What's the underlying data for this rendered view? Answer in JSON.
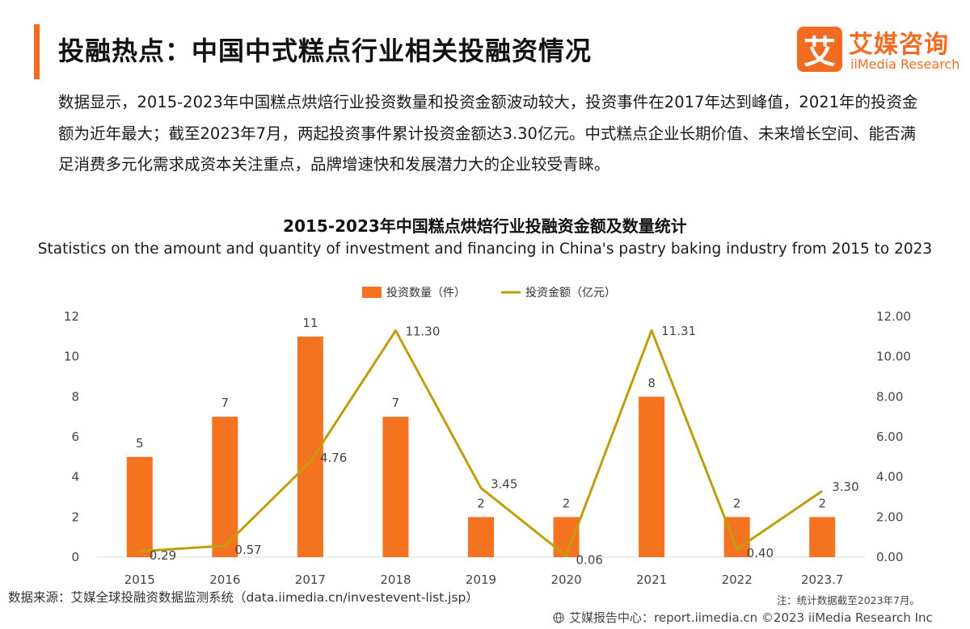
{
  "header": {
    "title": "投融热点：中国中式糕点行业相关投融资情况",
    "accent_color": "#f26b21"
  },
  "logo": {
    "mark": "艾",
    "name_cn": "艾媒咨询",
    "name_en": "iiMedia Research"
  },
  "summary": {
    "text": "数据显示，2015-2023年中国糕点烘焙行业投资数量和投资金额波动较大，投资事件在2017年达到峰值，2021年的投资金额为近年最大；截至2023年7月，两起投资事件累计投资金额达3.30亿元。中式糕点企业长期价值、未来增长空间、能否满足消费多元化需求成资本关注重点，品牌增速快和发展潜力大的企业较受青睐。"
  },
  "chart_data": {
    "type": "bar",
    "title": "2015-2023年中国糕点烘焙行业投融资金额及数量统计",
    "subtitle": "Statistics on the amount and quantity of investment and financing in China's pastry baking industry from 2015 to 2023",
    "categories": [
      "2015",
      "2016",
      "2017",
      "2018",
      "2019",
      "2020",
      "2021",
      "2022",
      "2023.7"
    ],
    "series": [
      {
        "name": "投资数量（件）",
        "type": "bar",
        "axis": "left",
        "color": "#f47321",
        "values": [
          5,
          7,
          11,
          7,
          2,
          2,
          8,
          2,
          2
        ],
        "labels": [
          "5",
          "7",
          "11",
          "7",
          "2",
          "2",
          "8",
          "2",
          "2"
        ]
      },
      {
        "name": "投资金额（亿元）",
        "type": "line",
        "axis": "right",
        "color": "#c29d0b",
        "values": [
          0.29,
          0.57,
          4.76,
          11.3,
          3.45,
          0.06,
          11.31,
          0.4,
          3.3
        ],
        "labels": [
          "0.29",
          "0.57",
          "4.76",
          "11.30",
          "3.45",
          "0.06",
          "11.31",
          "0.40",
          "3.30"
        ]
      }
    ],
    "y_left": {
      "ylim": [
        0,
        12
      ],
      "ticks": [
        "0",
        "2",
        "4",
        "6",
        "8",
        "10",
        "12"
      ]
    },
    "y_right": {
      "ylim": [
        0,
        12
      ],
      "ticks": [
        "0.00",
        "2.00",
        "4.00",
        "6.00",
        "8.00",
        "10.00",
        "12.00"
      ]
    },
    "grid": false,
    "legend_position": "top-center"
  },
  "footer": {
    "source": "数据来源：艾媒全球投融资数据监测系统（data.iimedia.cn/investevent-list.jsp）",
    "note": "注：统计数据截至2023年7月。",
    "copyright": "艾媒报告中心：report.iimedia.cn  ©2023  iiMedia Research  Inc"
  },
  "icons": {
    "footer": "globe-icon"
  }
}
